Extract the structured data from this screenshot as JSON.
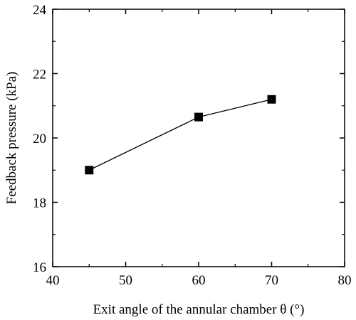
{
  "chart_data": {
    "type": "line",
    "title": "",
    "xlabel": "Exit angle of the annular chamber θ (°)",
    "ylabel": "Feedback pressure (kPa)",
    "xlim": [
      40,
      80
    ],
    "ylim": [
      16,
      24
    ],
    "xticks": [
      40,
      50,
      60,
      70,
      80
    ],
    "yticks": [
      16,
      18,
      20,
      22,
      24
    ],
    "xtick_labels": [
      "40",
      "50",
      "60",
      "70",
      "80"
    ],
    "ytick_labels": [
      "16",
      "18",
      "20",
      "22",
      "24"
    ],
    "grid": false,
    "legend": "none",
    "marker": "square",
    "series": [
      {
        "x": [
          45,
          60,
          70
        ],
        "y": [
          19.0,
          20.65,
          21.2
        ],
        "color": "#000000"
      }
    ]
  }
}
